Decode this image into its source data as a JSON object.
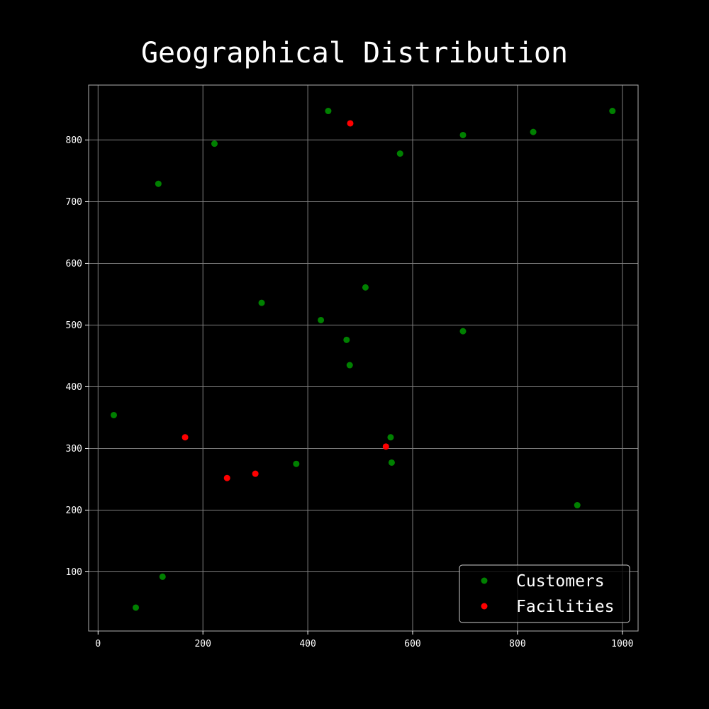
{
  "chart_data": {
    "type": "scatter",
    "title": "Geographical Distribution",
    "xlim": [
      -18,
      1030
    ],
    "ylim": [
      4,
      889
    ],
    "x_ticks": [
      0,
      200,
      400,
      600,
      800,
      1000
    ],
    "y_ticks": [
      100,
      200,
      300,
      400,
      500,
      600,
      700,
      800
    ],
    "grid": true,
    "legend_position": "lower-right",
    "series": [
      {
        "name": "Customers",
        "color": "#008000",
        "points": [
          {
            "x": 439,
            "y": 847
          },
          {
            "x": 981,
            "y": 847
          },
          {
            "x": 830,
            "y": 813
          },
          {
            "x": 696,
            "y": 808
          },
          {
            "x": 222,
            "y": 794
          },
          {
            "x": 576,
            "y": 778
          },
          {
            "x": 115,
            "y": 729
          },
          {
            "x": 510,
            "y": 561
          },
          {
            "x": 312,
            "y": 536
          },
          {
            "x": 425,
            "y": 508
          },
          {
            "x": 696,
            "y": 490
          },
          {
            "x": 474,
            "y": 476
          },
          {
            "x": 480,
            "y": 435
          },
          {
            "x": 30,
            "y": 354
          },
          {
            "x": 558,
            "y": 318
          },
          {
            "x": 378,
            "y": 275
          },
          {
            "x": 560,
            "y": 277
          },
          {
            "x": 914,
            "y": 208
          },
          {
            "x": 123,
            "y": 92
          },
          {
            "x": 72,
            "y": 42
          }
        ]
      },
      {
        "name": "Facilities",
        "color": "#ff0000",
        "points": [
          {
            "x": 481,
            "y": 827
          },
          {
            "x": 166,
            "y": 318
          },
          {
            "x": 549,
            "y": 303
          },
          {
            "x": 300,
            "y": 259
          },
          {
            "x": 246,
            "y": 252
          }
        ]
      }
    ]
  }
}
